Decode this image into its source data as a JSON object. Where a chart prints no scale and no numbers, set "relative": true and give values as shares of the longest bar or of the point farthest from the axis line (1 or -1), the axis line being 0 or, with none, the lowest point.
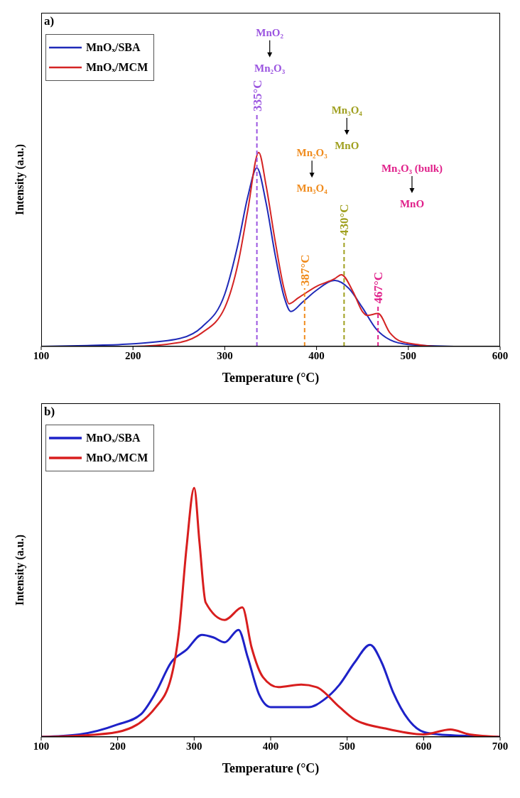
{
  "chart_data": [
    {
      "type": "line",
      "title": "a)",
      "xlabel": "Temperature (°C)",
      "ylabel": "Intensity (a.u.)",
      "relative": true,
      "legend": "top left",
      "xlim": [
        100,
        600
      ],
      "xticks": [
        100,
        200,
        300,
        400,
        500,
        600
      ],
      "series": [
        {
          "name": "MnOₓ/SBA",
          "color": "#1f2ab8",
          "x": [
            100,
            150,
            200,
            250,
            275,
            300,
            315,
            325,
            335,
            345,
            355,
            365,
            372,
            385,
            400,
            420,
            435,
            450,
            465,
            480,
            500,
            550,
            600
          ],
          "values": [
            0,
            0.005,
            0.014,
            0.04,
            0.1,
            0.27,
            0.54,
            0.77,
            0.92,
            0.74,
            0.47,
            0.25,
            0.18,
            0.23,
            0.29,
            0.34,
            0.3,
            0.2,
            0.09,
            0.034,
            0.01,
            0,
            0
          ]
        },
        {
          "name": "MnOₓ/MCM",
          "color": "#d42424",
          "x": [
            100,
            150,
            200,
            250,
            275,
            300,
            315,
            325,
            337,
            345,
            355,
            365,
            370,
            380,
            400,
            420,
            427,
            440,
            450,
            455,
            467,
            480,
            490,
            510,
            530,
            600
          ],
          "values": [
            0,
            0,
            0,
            0.02,
            0.07,
            0.2,
            0.44,
            0.7,
            1,
            0.83,
            0.54,
            0.29,
            0.22,
            0.25,
            0.31,
            0.35,
            0.37,
            0.28,
            0.18,
            0.16,
            0.17,
            0.07,
            0.03,
            0.01,
            0,
            0
          ]
        }
      ],
      "ref_lines": [
        {
          "axis": "x",
          "value": 335,
          "label": "335°C",
          "color": "#9b55e0",
          "line_style": "dashed"
        },
        {
          "axis": "x",
          "value": 387,
          "label": "387°C",
          "color": "#f08c1e",
          "line_style": "dashed"
        },
        {
          "axis": "x",
          "value": 430,
          "label": "430°C",
          "color": "#a0a020",
          "line_style": "dashed"
        },
        {
          "axis": "x",
          "value": 467,
          "label": "467°C",
          "color": "#e0208a",
          "line_style": "dashed"
        }
      ],
      "annotations": [
        "MnO₂",
        "Mn₂O₃",
        "Mn₂O₃",
        "Mn₃O₄",
        "Mn₃O₄",
        "MnO",
        "Mn₂O₃ (bulk)",
        "MnO"
      ]
    },
    {
      "type": "line",
      "title": "b)",
      "xlabel": "Temperature (°C)",
      "ylabel": "Intensity (a.u.)",
      "relative": true,
      "legend": "top left",
      "xlim": [
        100,
        700
      ],
      "xticks": [
        100,
        200,
        300,
        400,
        500,
        600,
        700
      ],
      "series": [
        {
          "name": "MnOₓ/SBA",
          "color": "#1e22c8",
          "x": [
            100,
            150,
            200,
            230,
            250,
            270,
            290,
            310,
            325,
            340,
            358,
            370,
            385,
            400,
            450,
            470,
            490,
            510,
            530,
            545,
            560,
            580,
            600,
            620,
            650,
            700
          ],
          "values": [
            0,
            0.01,
            0.05,
            0.09,
            0.18,
            0.3,
            0.35,
            0.41,
            0.4,
            0.38,
            0.43,
            0.32,
            0.17,
            0.12,
            0.12,
            0.15,
            0.21,
            0.3,
            0.37,
            0.3,
            0.18,
            0.07,
            0.02,
            0.01,
            0.005,
            0
          ]
        },
        {
          "name": "MnOₓ/MCM",
          "color": "#d81e1e",
          "x": [
            100,
            150,
            200,
            250,
            270,
            280,
            290,
            300,
            307,
            315,
            340,
            363,
            375,
            390,
            410,
            440,
            460,
            490,
            510,
            550,
            600,
            635,
            660,
            700
          ],
          "values": [
            0,
            0.005,
            0.02,
            0.12,
            0.24,
            0.42,
            0.76,
            1,
            0.78,
            0.54,
            0.47,
            0.52,
            0.36,
            0.24,
            0.2,
            0.21,
            0.2,
            0.12,
            0.07,
            0.034,
            0.01,
            0.03,
            0.01,
            0
          ]
        }
      ]
    }
  ]
}
